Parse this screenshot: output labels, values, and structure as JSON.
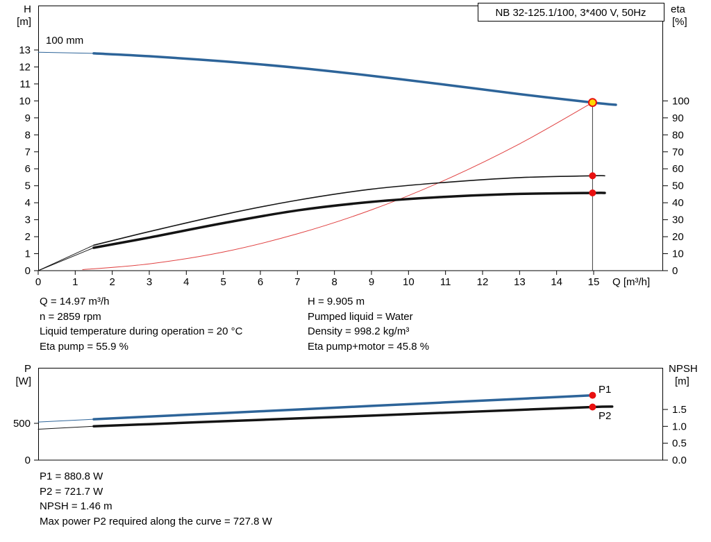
{
  "colors": {
    "curve_blue": "#2d6499",
    "curve_black": "#141414",
    "curve_red": "#e04040",
    "dot_red": "#e81010",
    "marker_yellow": "#ffd900",
    "duty_line": "#3a3a3a"
  },
  "info_top_left": {
    "lines": [
      "Q = 14.97 m³/h",
      "n = 2859 rpm",
      "Liquid temperature during operation = 20 °C",
      "Eta pump = 55.9 %"
    ]
  },
  "info_top_right": {
    "lines": [
      "H = 9.905 m",
      "Pumped liquid = Water",
      "Density = 998.2 kg/m³",
      "Eta pump+motor = 45.8 %"
    ]
  },
  "info_bottom": {
    "lines": [
      "P1 = 880.8 W",
      "P2 = 721.7 W",
      "NPSH = 1.46 m",
      "Max power P2 required along the curve = 727.8 W"
    ]
  },
  "chart_data": [
    {
      "type": "line",
      "title": "NB 32-125.1/100, 3*400 V, 50Hz",
      "xlabel": "Q [m³/h]",
      "ylabel_left_lines": [
        "H",
        "[m]"
      ],
      "ylabel_right_lines": [
        "eta",
        "[%]"
      ],
      "xlim": [
        0,
        16.875
      ],
      "ylim_left": [
        0,
        15.6
      ],
      "ylim_right": [
        0,
        100
      ],
      "x_ticks": [
        0,
        1,
        2,
        3,
        4,
        5,
        6,
        7,
        8,
        9,
        10,
        11,
        12,
        13,
        14,
        15
      ],
      "y_ticks_left": [
        0,
        1,
        2,
        3,
        4,
        5,
        6,
        7,
        8,
        9,
        10,
        11,
        12,
        13
      ],
      "y_ticks_right": [
        0,
        10,
        20,
        30,
        40,
        50,
        60,
        70,
        80,
        90,
        100
      ],
      "duty_point": {
        "Q": 14.97,
        "H": 9.905,
        "eta_pump": 55.9,
        "eta_pump_motor": 45.8
      },
      "duty_line": {
        "x": 14.97,
        "from": 0,
        "to": 9.905
      },
      "impeller_label": "100 mm",
      "series": [
        {
          "name": "qh-curve-extension",
          "axis": "H",
          "color": "curve_blue",
          "width": 1,
          "points": [
            [
              0,
              12.87
            ],
            [
              1.5,
              12.8
            ]
          ]
        },
        {
          "name": "qh-curve",
          "axis": "H",
          "color": "curve_blue",
          "width": 3.5,
          "label": "100 mm",
          "points": [
            [
              1.5,
              12.8
            ],
            [
              3,
              12.63
            ],
            [
              5,
              12.33
            ],
            [
              7,
              11.95
            ],
            [
              9,
              11.48
            ],
            [
              11,
              10.95
            ],
            [
              13,
              10.4
            ],
            [
              14.97,
              9.905
            ],
            [
              15.6,
              9.77
            ]
          ]
        },
        {
          "name": "system-curve",
          "axis": "H",
          "color": "curve_red",
          "width": 1,
          "points": [
            [
              1.2,
              0.06
            ],
            [
              3,
              0.4
            ],
            [
              5,
              1.1
            ],
            [
              7,
              2.17
            ],
            [
              9,
              3.58
            ],
            [
              11,
              5.35
            ],
            [
              13,
              7.47
            ],
            [
              14.97,
              9.905
            ]
          ]
        },
        {
          "name": "eta-pump-extension",
          "axis": "eta",
          "color": "curve_black",
          "width": 1,
          "points": [
            [
              0,
              0
            ],
            [
              1.5,
              15
            ]
          ]
        },
        {
          "name": "eta-pump-curve",
          "axis": "eta",
          "color": "curve_black",
          "width": 1.6,
          "points": [
            [
              1.5,
              15
            ],
            [
              3,
              23
            ],
            [
              5,
              33
            ],
            [
              7,
              41.5
            ],
            [
              9,
              48
            ],
            [
              11,
              52
            ],
            [
              13,
              54.8
            ],
            [
              14.97,
              55.9
            ],
            [
              15.3,
              55.9
            ]
          ]
        },
        {
          "name": "eta-pump-motor-extension",
          "axis": "eta",
          "color": "curve_black",
          "width": 1,
          "points": [
            [
              0,
              0
            ],
            [
              1.5,
              13.5
            ]
          ]
        },
        {
          "name": "eta-pump-motor-curve",
          "axis": "eta",
          "color": "curve_black",
          "width": 3.5,
          "points": [
            [
              1.5,
              13.5
            ],
            [
              3,
              19.5
            ],
            [
              5,
              28
            ],
            [
              7,
              35.5
            ],
            [
              9,
              40.5
            ],
            [
              11,
              43.5
            ],
            [
              13,
              45.2
            ],
            [
              14.97,
              45.8
            ],
            [
              15.3,
              45.8
            ]
          ]
        }
      ],
      "markers": [
        {
          "name": "duty-point-marker",
          "axis": "H",
          "x": 14.97,
          "y": 9.905,
          "style": "duty"
        },
        {
          "name": "eta-pump-point",
          "axis": "eta",
          "x": 14.97,
          "y": 55.9,
          "style": "red"
        },
        {
          "name": "eta-pump-motor-point",
          "axis": "eta",
          "x": 14.97,
          "y": 45.8,
          "style": "red"
        }
      ]
    },
    {
      "type": "line",
      "ylabel_left_lines": [
        "P",
        "[W]"
      ],
      "ylabel_right_lines": [
        "NPSH",
        "[m]"
      ],
      "xlim": [
        0,
        16.875
      ],
      "ylim_left_W": [
        0,
        1250
      ],
      "ylim_right_m": [
        0,
        2.73
      ],
      "y_ticks_left": [
        "0",
        "500"
      ],
      "y_ticks_right": [
        "0.0",
        "0.5",
        "1.0",
        "1.5"
      ],
      "series": [
        {
          "name": "p1-curve-extension",
          "axis": "P",
          "color": "curve_blue",
          "width": 1,
          "points": [
            [
              0,
              518
            ],
            [
              1.5,
              556
            ]
          ]
        },
        {
          "name": "p1-curve",
          "axis": "P",
          "color": "curve_blue",
          "width": 3.5,
          "label": "P1",
          "points": [
            [
              1.5,
              556
            ],
            [
              3,
              592
            ],
            [
              5,
              640
            ],
            [
              7,
              688
            ],
            [
              9,
              737
            ],
            [
              11,
              785
            ],
            [
              13,
              833
            ],
            [
              14.97,
              880.8
            ]
          ]
        },
        {
          "name": "p2-curve-extension",
          "axis": "P",
          "color": "curve_black",
          "width": 1,
          "points": [
            [
              0,
              420
            ],
            [
              1.5,
              460
            ]
          ]
        },
        {
          "name": "p2-curve",
          "axis": "P",
          "color": "curve_black",
          "width": 3.5,
          "label": "P2",
          "points": [
            [
              1.5,
              460
            ],
            [
              3,
              489
            ],
            [
              5,
              528
            ],
            [
              7,
              567
            ],
            [
              9,
              605
            ],
            [
              11,
              644
            ],
            [
              13,
              683
            ],
            [
              14.97,
              721.7
            ],
            [
              15.5,
              727.8
            ]
          ]
        }
      ],
      "markers": [
        {
          "name": "p1-point",
          "axis": "P",
          "x": 14.97,
          "y": 880.8,
          "style": "red"
        },
        {
          "name": "p2-point",
          "axis": "P",
          "x": 14.97,
          "y": 721.7,
          "style": "red"
        }
      ]
    }
  ]
}
